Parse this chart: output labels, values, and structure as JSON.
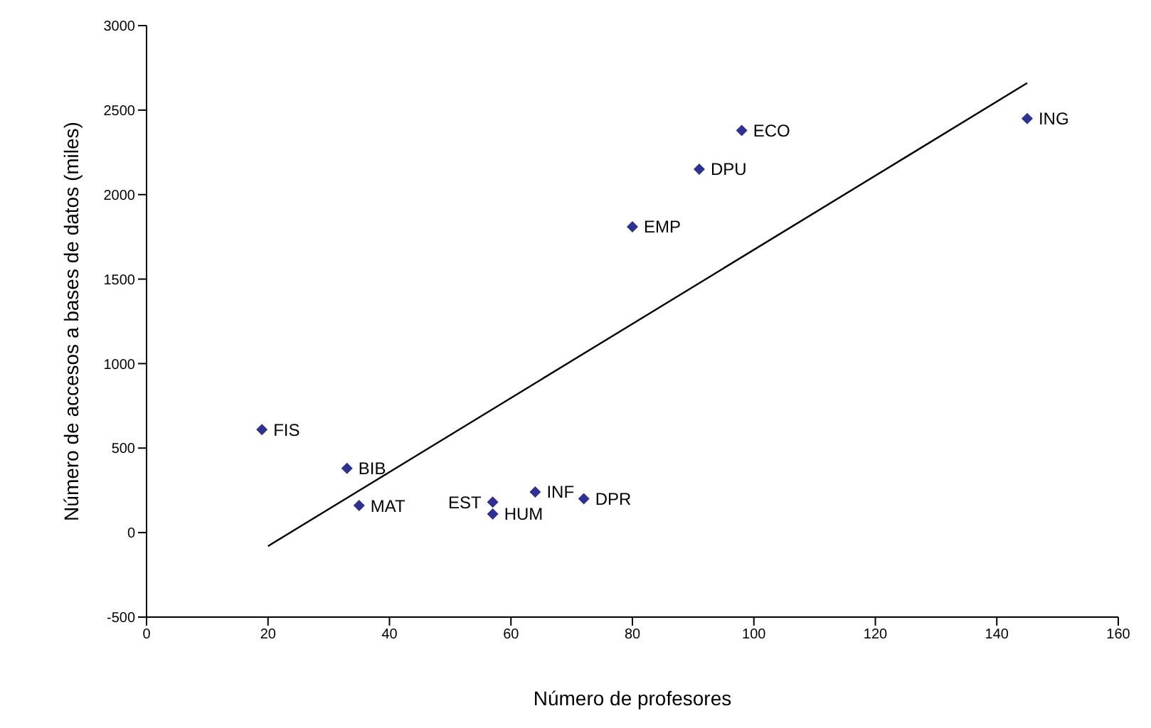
{
  "chart_data": {
    "type": "scatter",
    "xlabel": "Número de profesores",
    "ylabel": "Número de accesos a bases de datos (miles)",
    "xlim": [
      0,
      160
    ],
    "xticks": [
      0,
      20,
      40,
      60,
      80,
      100,
      120,
      140,
      160
    ],
    "ylim": [
      -500,
      3000
    ],
    "yticks": [
      -500,
      0,
      500,
      1000,
      1500,
      2000,
      2500,
      3000
    ],
    "grid": false,
    "legend": false,
    "marker": "diamond",
    "series": [
      {
        "color": "#2e3192",
        "x": [
          19,
          33,
          35,
          57,
          57,
          64,
          72,
          80,
          91,
          98,
          145
        ],
        "values": [
          610,
          380,
          160,
          180,
          110,
          240,
          200,
          1810,
          2150,
          2380,
          2450
        ]
      },
      {
        "type": "line",
        "color": "#000000",
        "marker": "none",
        "line_style": "solid",
        "x": [
          20,
          145
        ],
        "values": [
          -80,
          2660
        ]
      }
    ],
    "annotations": [
      {
        "text": "FIS",
        "x": 19,
        "y": 610
      },
      {
        "text": "BIB",
        "x": 33,
        "y": 380
      },
      {
        "text": "MAT",
        "x": 35,
        "y": 160
      },
      {
        "text": "EST",
        "x": 57,
        "y": 180
      },
      {
        "text": "HUM",
        "x": 57,
        "y": 110
      },
      {
        "text": "INF",
        "x": 64,
        "y": 240
      },
      {
        "text": "DPR",
        "x": 72,
        "y": 200
      },
      {
        "text": "EMP",
        "x": 80,
        "y": 1810
      },
      {
        "text": "DPU",
        "x": 91,
        "y": 2150
      },
      {
        "text": "ECO",
        "x": 98,
        "y": 2380
      },
      {
        "text": "ING",
        "x": 145,
        "y": 2450
      }
    ]
  }
}
